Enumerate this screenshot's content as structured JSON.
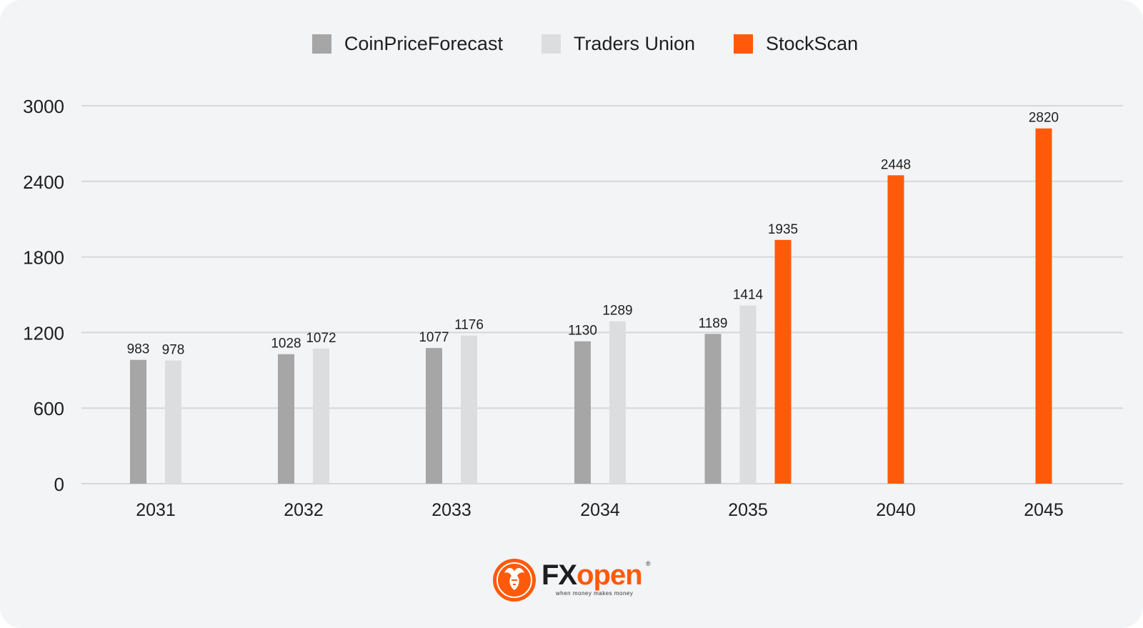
{
  "chart_data": {
    "type": "bar",
    "categories": [
      "2031",
      "2032",
      "2033",
      "2034",
      "2035",
      "2040",
      "2045"
    ],
    "series": [
      {
        "name": "CoinPriceForecast",
        "color": "#a6a6a6",
        "values": [
          983,
          1028,
          1077,
          1130,
          1189,
          null,
          null
        ]
      },
      {
        "name": "Traders Union",
        "color": "#dcdddf",
        "values": [
          978,
          1072,
          1176,
          1289,
          1414,
          null,
          null
        ]
      },
      {
        "name": "StockScan",
        "color": "#ff5a0a",
        "values": [
          null,
          null,
          null,
          null,
          1935,
          2448,
          2820
        ]
      }
    ],
    "ylim": [
      0,
      3000
    ],
    "yticks": [
      0,
      600,
      1200,
      1800,
      2400,
      3000
    ],
    "grid": true,
    "legend": "top-center",
    "data_labels": true
  },
  "logo": {
    "fx": "FX",
    "open": "open",
    "tagline": "when money makes money",
    "reg": "®"
  }
}
